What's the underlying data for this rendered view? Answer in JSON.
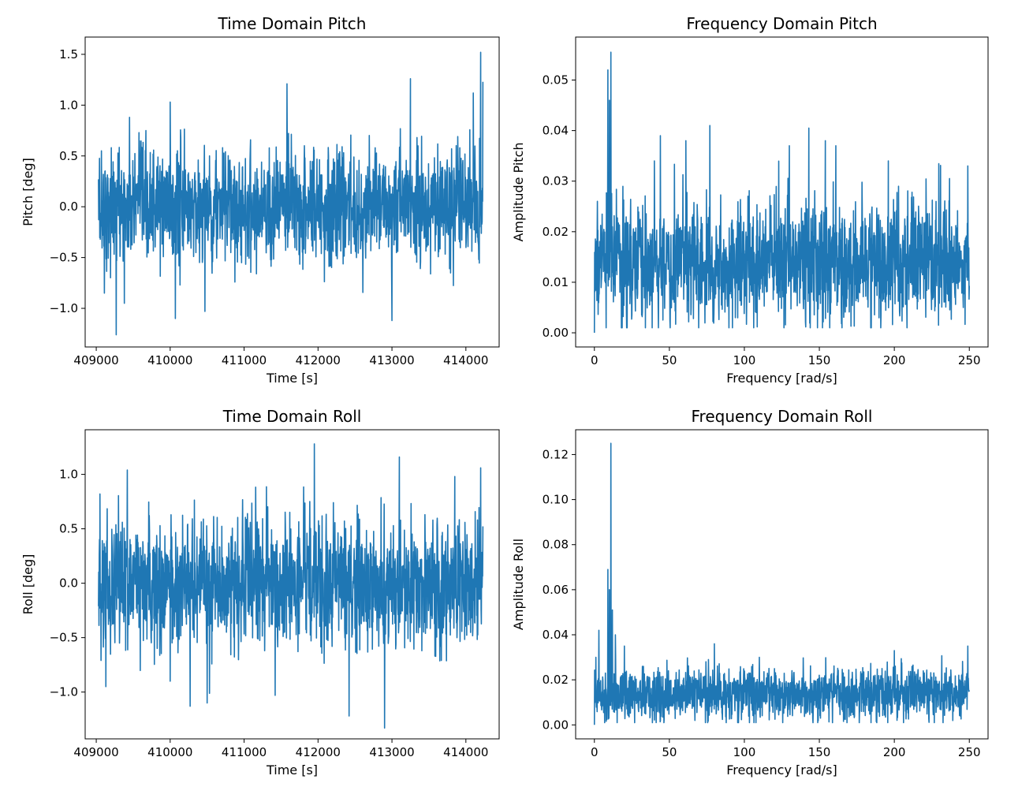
{
  "figure": {
    "line_color": "#1f77b4"
  },
  "chart_data": [
    {
      "type": "line",
      "title": "Time Domain Pitch",
      "xlabel": "Time [s]",
      "ylabel": "Pitch [deg]",
      "xlim": [
        408850,
        414450
      ],
      "ylim": [
        -1.38,
        1.67
      ],
      "xticks": [
        409000,
        410000,
        411000,
        412000,
        413000,
        414000
      ],
      "xtick_labels": [
        "409000",
        "410000",
        "411000",
        "412000",
        "413000",
        "414000"
      ],
      "yticks": [
        -1.0,
        -0.5,
        0.0,
        0.5,
        1.0,
        1.5
      ],
      "ytick_labels": [
        "−1.0",
        "−0.5",
        "0.0",
        "0.5",
        "1.0",
        "1.5"
      ],
      "grid": false,
      "series": [
        {
          "x_range": [
            409030,
            414230
          ],
          "approx_envelope": {
            "mean": 0.0,
            "std": 0.28
          },
          "notable_points": [
            {
              "x": 409070,
              "y": 0.55
            },
            {
              "x": 409110,
              "y": -0.85
            },
            {
              "x": 409270,
              "y": -1.26
            },
            {
              "x": 409380,
              "y": -0.95
            },
            {
              "x": 409450,
              "y": 0.88
            },
            {
              "x": 410000,
              "y": 1.03
            },
            {
              "x": 410070,
              "y": -1.1
            },
            {
              "x": 410470,
              "y": -1.03
            },
            {
              "x": 411580,
              "y": 1.21
            },
            {
              "x": 413000,
              "y": -1.12
            },
            {
              "x": 413250,
              "y": 1.26
            },
            {
              "x": 414100,
              "y": 1.12
            },
            {
              "x": 414200,
              "y": 1.52
            },
            {
              "x": 414230,
              "y": 1.23
            }
          ]
        }
      ]
    },
    {
      "type": "line",
      "title": "Frequency Domain Pitch",
      "xlabel": "Frequency [rad/s]",
      "ylabel": "Amplitude Pitch",
      "xlim": [
        -12.5,
        262.5
      ],
      "ylim": [
        -0.0028,
        0.0585
      ],
      "xticks": [
        0,
        50,
        100,
        150,
        200,
        250
      ],
      "xtick_labels": [
        "0",
        "50",
        "100",
        "150",
        "200",
        "250"
      ],
      "yticks": [
        0.0,
        0.01,
        0.02,
        0.03,
        0.04,
        0.05
      ],
      "ytick_labels": [
        "0.00",
        "0.01",
        "0.02",
        "0.03",
        "0.04",
        "0.05"
      ],
      "grid": false,
      "series": [
        {
          "x_range": [
            0,
            250
          ],
          "approx_envelope": {
            "mean": 0.014,
            "std": 0.006
          },
          "notable_points": [
            {
              "x": 0,
              "y": 0.0
            },
            {
              "x": 1,
              "y": 0.012
            },
            {
              "x": 2,
              "y": 0.026
            },
            {
              "x": 9,
              "y": 0.052
            },
            {
              "x": 10,
              "y": 0.046
            },
            {
              "x": 11,
              "y": 0.0555
            },
            {
              "x": 40,
              "y": 0.034
            },
            {
              "x": 44,
              "y": 0.039
            },
            {
              "x": 61,
              "y": 0.038
            },
            {
              "x": 77,
              "y": 0.041
            },
            {
              "x": 94,
              "y": 0.003
            },
            {
              "x": 130,
              "y": 0.037
            },
            {
              "x": 143,
              "y": 0.0405
            },
            {
              "x": 154,
              "y": 0.038
            },
            {
              "x": 161,
              "y": 0.037
            },
            {
              "x": 196,
              "y": 0.034
            },
            {
              "x": 246,
              "y": 0.005
            },
            {
              "x": 249,
              "y": 0.033
            }
          ]
        }
      ]
    },
    {
      "type": "line",
      "title": "Time Domain Roll",
      "xlabel": "Time [s]",
      "ylabel": "Roll [deg]",
      "xlim": [
        408850,
        414450
      ],
      "ylim": [
        -1.43,
        1.41
      ],
      "xticks": [
        409000,
        410000,
        411000,
        412000,
        413000,
        414000
      ],
      "xtick_labels": [
        "409000",
        "410000",
        "411000",
        "412000",
        "413000",
        "414000"
      ],
      "yticks": [
        -1.0,
        -0.5,
        0.0,
        0.5,
        1.0
      ],
      "ytick_labels": [
        "−1.0",
        "−0.5",
        "0.0",
        "0.5",
        "1.0"
      ],
      "grid": false,
      "series": [
        {
          "x_range": [
            409030,
            414230
          ],
          "approx_envelope": {
            "mean": 0.0,
            "std": 0.3
          },
          "notable_points": [
            {
              "x": 409050,
              "y": 0.82
            },
            {
              "x": 409130,
              "y": -0.95
            },
            {
              "x": 409420,
              "y": 1.04
            },
            {
              "x": 410000,
              "y": -0.9
            },
            {
              "x": 410270,
              "y": -1.13
            },
            {
              "x": 410500,
              "y": -1.1
            },
            {
              "x": 411420,
              "y": -1.03
            },
            {
              "x": 411950,
              "y": 1.28
            },
            {
              "x": 412420,
              "y": -1.22
            },
            {
              "x": 412900,
              "y": -1.33
            },
            {
              "x": 413100,
              "y": 1.16
            },
            {
              "x": 413850,
              "y": 0.98
            },
            {
              "x": 414200,
              "y": 1.06
            }
          ]
        }
      ]
    },
    {
      "type": "line",
      "title": "Frequency Domain Roll",
      "xlabel": "Frequency [rad/s]",
      "ylabel": "Amplitude Roll",
      "xlim": [
        -12.5,
        262.5
      ],
      "ylim": [
        -0.0062,
        0.131
      ],
      "xticks": [
        0,
        50,
        100,
        150,
        200,
        250
      ],
      "xtick_labels": [
        "0",
        "50",
        "100",
        "150",
        "200",
        "250"
      ],
      "yticks": [
        0.0,
        0.02,
        0.04,
        0.06,
        0.08,
        0.1,
        0.12
      ],
      "ytick_labels": [
        "0.00",
        "0.02",
        "0.04",
        "0.06",
        "0.08",
        "0.10",
        "0.12"
      ],
      "grid": false,
      "series": [
        {
          "x_range": [
            0,
            250
          ],
          "approx_envelope": {
            "mean": 0.014,
            "std": 0.006
          },
          "notable_points": [
            {
              "x": 0,
              "y": 0.0
            },
            {
              "x": 1,
              "y": 0.03
            },
            {
              "x": 3,
              "y": 0.042
            },
            {
              "x": 9,
              "y": 0.069
            },
            {
              "x": 10,
              "y": 0.06
            },
            {
              "x": 11,
              "y": 0.125
            },
            {
              "x": 12,
              "y": 0.051
            },
            {
              "x": 14,
              "y": 0.04
            },
            {
              "x": 20,
              "y": 0.035
            },
            {
              "x": 80,
              "y": 0.036
            },
            {
              "x": 110,
              "y": 0.03
            },
            {
              "x": 200,
              "y": 0.033
            },
            {
              "x": 249,
              "y": 0.035
            }
          ]
        }
      ]
    }
  ]
}
